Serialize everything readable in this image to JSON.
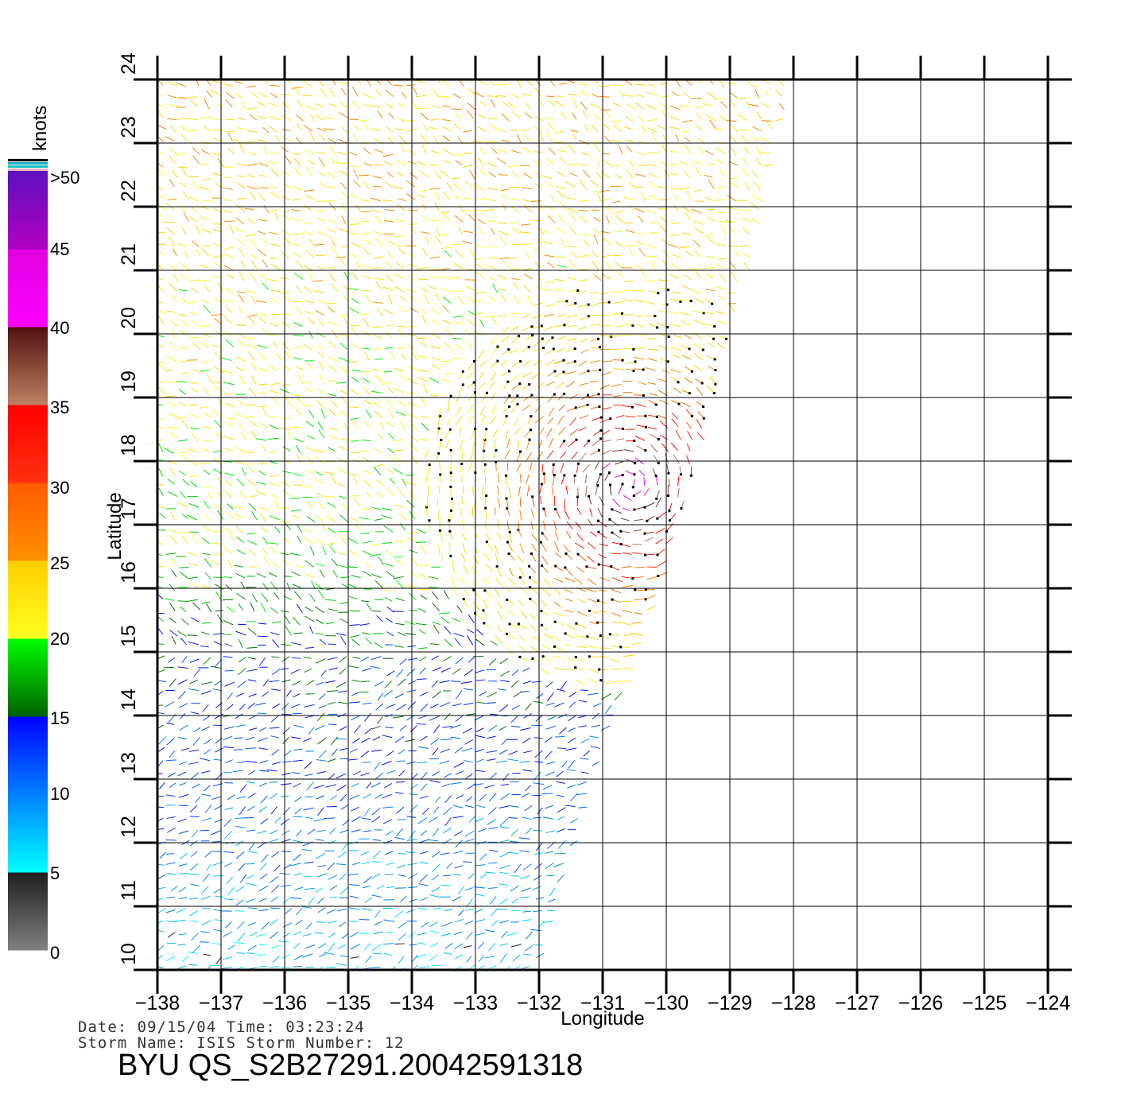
{
  "chart_data": {
    "type": "wind-vector map",
    "xlabel": "Longitude",
    "ylabel": "Latitude",
    "xlim": [
      -138,
      -124
    ],
    "ylim": [
      10,
      24
    ],
    "x_ticks": [
      "-138",
      "-137",
      "-136",
      "-135",
      "-134",
      "-133",
      "-132",
      "-131",
      "-130",
      "-129",
      "-128",
      "-127",
      "-126",
      "-125",
      "-124"
    ],
    "y_ticks": [
      "10",
      "11",
      "12",
      "13",
      "14",
      "15",
      "16",
      "17",
      "18",
      "19",
      "20",
      "21",
      "22",
      "23",
      "24"
    ],
    "grid": true,
    "colorbar": {
      "title": "knots",
      "tick_labels": [
        "0",
        "5",
        "10",
        "15",
        "20",
        "25",
        "30",
        "35",
        "40",
        "45",
        ">50"
      ],
      "bands": [
        {
          "from": 0,
          "to": 5,
          "colors": [
            "#808080",
            "#1e1e1e"
          ]
        },
        {
          "from": 5,
          "to": 10,
          "colors": [
            "#00ffff",
            "#0080ff"
          ]
        },
        {
          "from": 10,
          "to": 15,
          "colors": [
            "#0080ff",
            "#0000ff"
          ]
        },
        {
          "from": 15,
          "to": 20,
          "colors": [
            "#006000",
            "#00ff00"
          ]
        },
        {
          "from": 20,
          "to": 25,
          "colors": [
            "#ffff20",
            "#ffcc00"
          ]
        },
        {
          "from": 25,
          "to": 30,
          "colors": [
            "#ff9000",
            "#ff5a00"
          ]
        },
        {
          "from": 30,
          "to": 35,
          "colors": [
            "#ff3010",
            "#ff0000"
          ]
        },
        {
          "from": 35,
          "to": 40,
          "colors": [
            "#c08060",
            "#501010"
          ]
        },
        {
          "from": 40,
          "to": 45,
          "colors": [
            "#ff00ff",
            "#e000e0"
          ]
        },
        {
          "from": 45,
          "to": 50,
          "colors": [
            "#b000c0",
            "#6010c0"
          ]
        }
      ],
      "top_stripes": [
        "#f0b0c0",
        "#10c0c0",
        "#10b0c0",
        "#000000"
      ]
    },
    "swath_edge": [
      {
        "lat": 10,
        "lon": -132
      },
      {
        "lat": 15,
        "lon": -130.5
      },
      {
        "lat": 18,
        "lon": -129.5
      },
      {
        "lat": 21,
        "lon": -128.7
      },
      {
        "lat": 24,
        "lon": -128.0
      }
    ],
    "wind_field": {
      "description": "dense swath of wind vectors; speeds in knots",
      "regions": [
        {
          "lat_range": [
            10,
            13
          ],
          "speed_kt": 8
        },
        {
          "lat_range": [
            13,
            15
          ],
          "speed_kt": 12
        },
        {
          "lat_range": [
            15,
            17
          ],
          "speed_kt": 18
        },
        {
          "lat_range": [
            17,
            24
          ],
          "speed_kt": 22
        },
        {
          "storm_center": {
            "lat": 17.6,
            "lon": -130.6
          },
          "peak_speed_kt": 45
        }
      ]
    }
  },
  "footer": {
    "date_line": "Date: 09/15/04   Time: 03:23:24",
    "storm_line": "Storm  Name: ISIS   Storm  Number: 12",
    "ident": "BYU  QS_S2B27291.20042591318"
  }
}
